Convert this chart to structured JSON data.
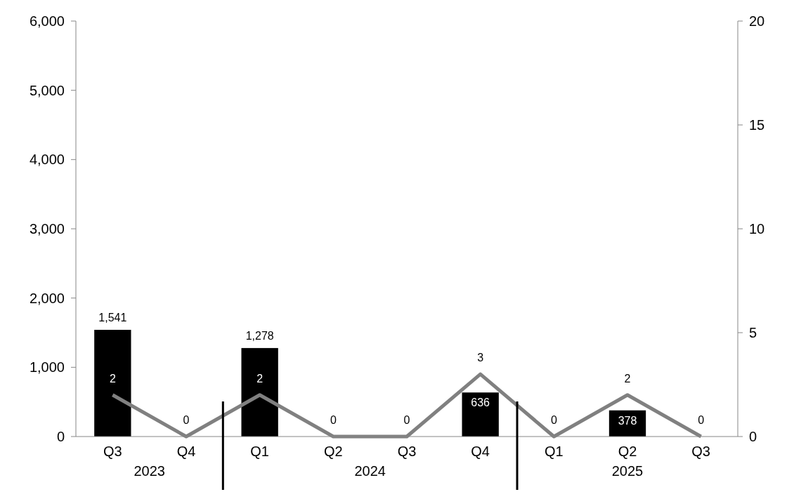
{
  "chart_data": {
    "type": "bar",
    "categories": [
      "Q3",
      "Q4",
      "Q1",
      "Q2",
      "Q3",
      "Q4",
      "Q1",
      "Q2",
      "Q3"
    ],
    "series": [
      {
        "color": "#000000",
        "values": [
          1541,
          0,
          1278,
          0,
          0,
          636,
          0,
          378,
          0
        ],
        "value_labels": [
          "1,541",
          null,
          "1,278",
          null,
          null,
          "636",
          null,
          "378",
          null
        ]
      },
      {
        "type": "line",
        "axis": "y2",
        "color": "#808080",
        "values": [
          2,
          0,
          2,
          0,
          0,
          3,
          0,
          2,
          0
        ],
        "value_labels": [
          "2",
          "0",
          "2",
          "0",
          "0",
          "3",
          "0",
          "2",
          "0"
        ]
      }
    ],
    "ylim": [
      0,
      6000
    ],
    "yticks": [
      {
        "value": 0,
        "label": "0"
      },
      {
        "value": 1000,
        "label": "1,000"
      },
      {
        "value": 2000,
        "label": "2,000"
      },
      {
        "value": 3000,
        "label": "3,000"
      },
      {
        "value": 4000,
        "label": "4,000"
      },
      {
        "value": 5000,
        "label": "5,000"
      },
      {
        "value": 6000,
        "label": "6,000"
      }
    ],
    "y2lim": [
      0,
      20
    ],
    "y2ticks": [
      0,
      5,
      10,
      15,
      20
    ],
    "annotations": [
      "2023",
      "2024",
      "2025"
    ],
    "grid": false,
    "marker": "none",
    "line_style": "solid"
  }
}
